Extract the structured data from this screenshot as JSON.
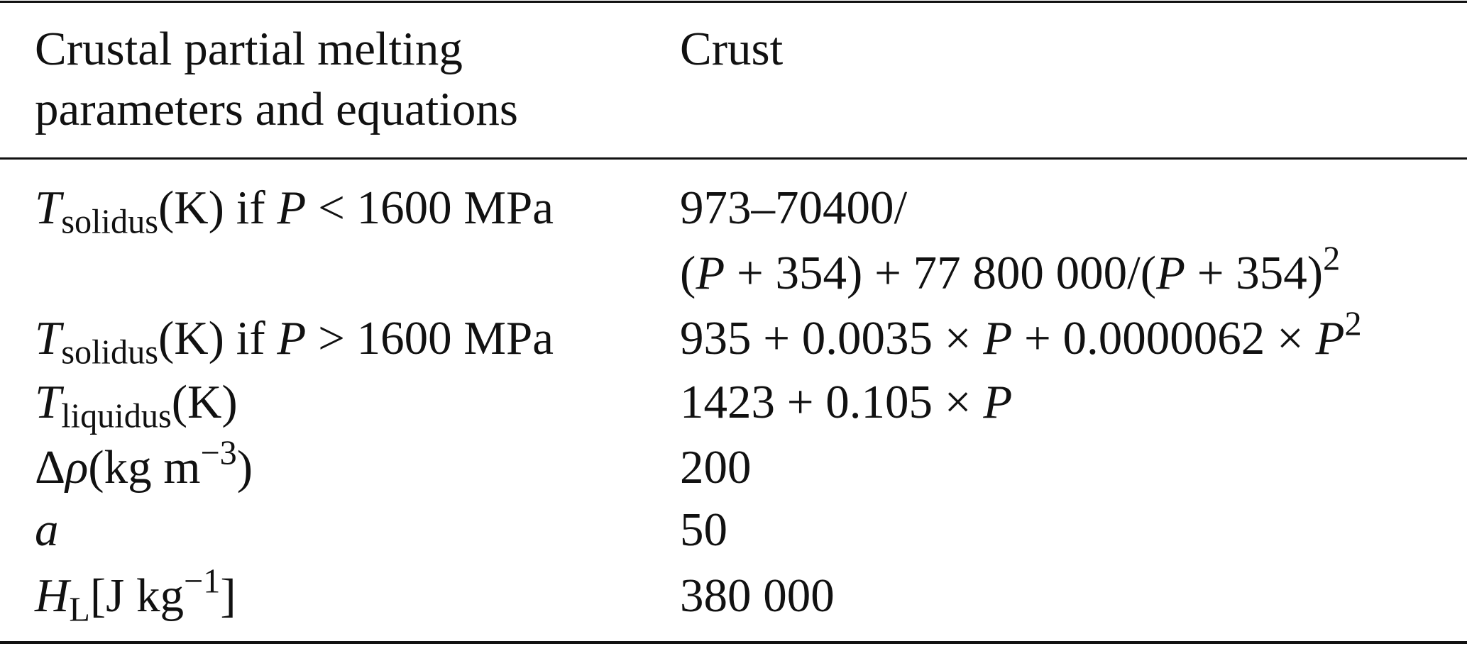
{
  "table": {
    "header": [
      [
        "Crustal partial melting",
        "parameters and equations"
      ],
      [
        "Crust"
      ]
    ],
    "rows": [
      {
        "label": [
          "T",
          "solidus",
          "(K) if ",
          "P",
          " < 1600 MPa"
        ],
        "value": [
          "973–70400/",
          "(",
          "P",
          " + 354) + 77 800 000/(",
          "P",
          " + 354)",
          "2"
        ]
      },
      {
        "label": [
          "T",
          "solidus",
          "(K) if ",
          "P",
          " > 1600 MPa"
        ],
        "value": [
          "935 + 0.0035 × ",
          "P",
          " + 0.0000062 × ",
          "P",
          "2"
        ]
      },
      {
        "label": [
          "T",
          "liquidus",
          "(K)"
        ],
        "value": [
          "1423 + 0.105 × ",
          "P"
        ]
      },
      {
        "label": [
          "Δ",
          "ρ",
          "(kg m",
          "−3",
          ")"
        ],
        "value": [
          "200"
        ]
      },
      {
        "label": [
          "a"
        ],
        "value": [
          "50"
        ]
      },
      {
        "label": [
          "H",
          "L",
          "[J kg",
          "−1",
          "]"
        ],
        "value": [
          "380 000"
        ]
      }
    ]
  }
}
